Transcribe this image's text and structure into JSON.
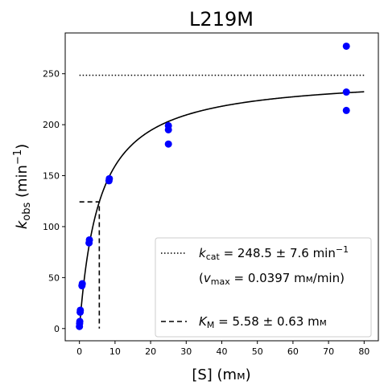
{
  "chart_data": {
    "type": "scatter",
    "title": "L219M",
    "xlabel": {
      "main": "[S] (m",
      "unit_sc": "м",
      "close": ")"
    },
    "ylabel": {
      "k": "k",
      "sub": "obs",
      "mid": " (min",
      "sup": "−1",
      "close": ")"
    },
    "xlim": [
      -4,
      84
    ],
    "ylim": [
      -12,
      290
    ],
    "xticks": [
      0,
      10,
      20,
      30,
      40,
      50,
      60,
      70,
      80
    ],
    "yticks": [
      0,
      50,
      100,
      150,
      200,
      250
    ],
    "points": [
      {
        "x": 0.0,
        "y": 2
      },
      {
        "x": 0.05,
        "y": 5
      },
      {
        "x": 0.1,
        "y": 7
      },
      {
        "x": 0.2,
        "y": 16
      },
      {
        "x": 0.25,
        "y": 18
      },
      {
        "x": 0.7,
        "y": 42
      },
      {
        "x": 0.8,
        "y": 44
      },
      {
        "x": 2.7,
        "y": 84
      },
      {
        "x": 2.8,
        "y": 87
      },
      {
        "x": 8.3,
        "y": 145
      },
      {
        "x": 8.4,
        "y": 147
      },
      {
        "x": 25.0,
        "y": 181
      },
      {
        "x": 25.0,
        "y": 195
      },
      {
        "x": 25.0,
        "y": 199
      },
      {
        "x": 75.0,
        "y": 214
      },
      {
        "x": 75.0,
        "y": 232
      },
      {
        "x": 75.0,
        "y": 277
      }
    ],
    "point_color": "#0000ff",
    "fit": {
      "kcat": 248.5,
      "km": 5.58,
      "x_max": 80,
      "color": "#000000"
    },
    "kcat_line": {
      "y": 248.5,
      "x_range": [
        0,
        80
      ]
    },
    "km_line": {
      "x": 5.58,
      "y_half": 124.25
    },
    "legend": {
      "placement": "lower-right",
      "kcat": {
        "sym": "k",
        "sub": "cat",
        "text": " = 248.5 ± 7.6 min",
        "sup": "−1"
      },
      "vmax": {
        "open": "(",
        "sym": "v",
        "sub": "max",
        "text": " = 0.0397 m",
        "unit_sc": "м",
        "close": "/min)"
      },
      "km": {
        "sym": "K",
        "sub": "M",
        "text": " = 5.58 ± 0.63 m",
        "unit_sc": "м"
      }
    }
  }
}
